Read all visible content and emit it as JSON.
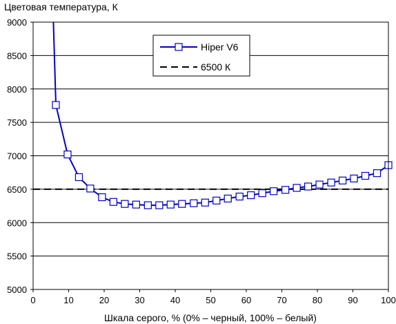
{
  "chart_data": {
    "type": "line",
    "ylabel": "Цветовая температура, К",
    "xlabel": "Шкала серого, % (0% – черный, 100% – белый)",
    "xlim": [
      0,
      100
    ],
    "ylim": [
      5000,
      9000
    ],
    "x_ticks": [
      0,
      10,
      20,
      30,
      40,
      50,
      60,
      70,
      80,
      90,
      100
    ],
    "y_ticks": [
      5000,
      5500,
      6000,
      6500,
      7000,
      7500,
      8000,
      8500,
      9000
    ],
    "x_tick_labels": [
      "0",
      "10",
      "20",
      "30",
      "40",
      "50",
      "60",
      "70",
      "80",
      "90",
      "100"
    ],
    "y_tick_labels": [
      "5000",
      "5500",
      "6000",
      "6500",
      "7000",
      "7500",
      "8000",
      "8500",
      "9000"
    ],
    "grid": "horizontal",
    "legend_position": "top-center",
    "series": [
      {
        "name": "Hiper V6",
        "color": "#0000c0",
        "marker": "square",
        "lead_in": [
          [
            5.7,
            9000
          ]
        ],
        "x": [
          6.4,
          9.7,
          12.9,
          16.1,
          19.4,
          22.6,
          25.8,
          29.0,
          32.3,
          35.5,
          38.7,
          41.9,
          45.2,
          48.4,
          51.6,
          54.8,
          58.1,
          61.3,
          64.5,
          67.7,
          71.0,
          74.2,
          77.4,
          80.6,
          83.9,
          87.1,
          90.3,
          93.5,
          96.8,
          100.0
        ],
        "values": [
          7760,
          7020,
          6680,
          6510,
          6380,
          6310,
          6280,
          6270,
          6260,
          6260,
          6270,
          6280,
          6290,
          6300,
          6330,
          6360,
          6390,
          6410,
          6440,
          6470,
          6490,
          6520,
          6540,
          6570,
          6600,
          6630,
          6660,
          6700,
          6740,
          6860
        ]
      },
      {
        "name": "6500 К",
        "color": "#000000",
        "style": "dashed",
        "x": [
          0,
          100
        ],
        "values": [
          6500,
          6500
        ]
      }
    ]
  }
}
